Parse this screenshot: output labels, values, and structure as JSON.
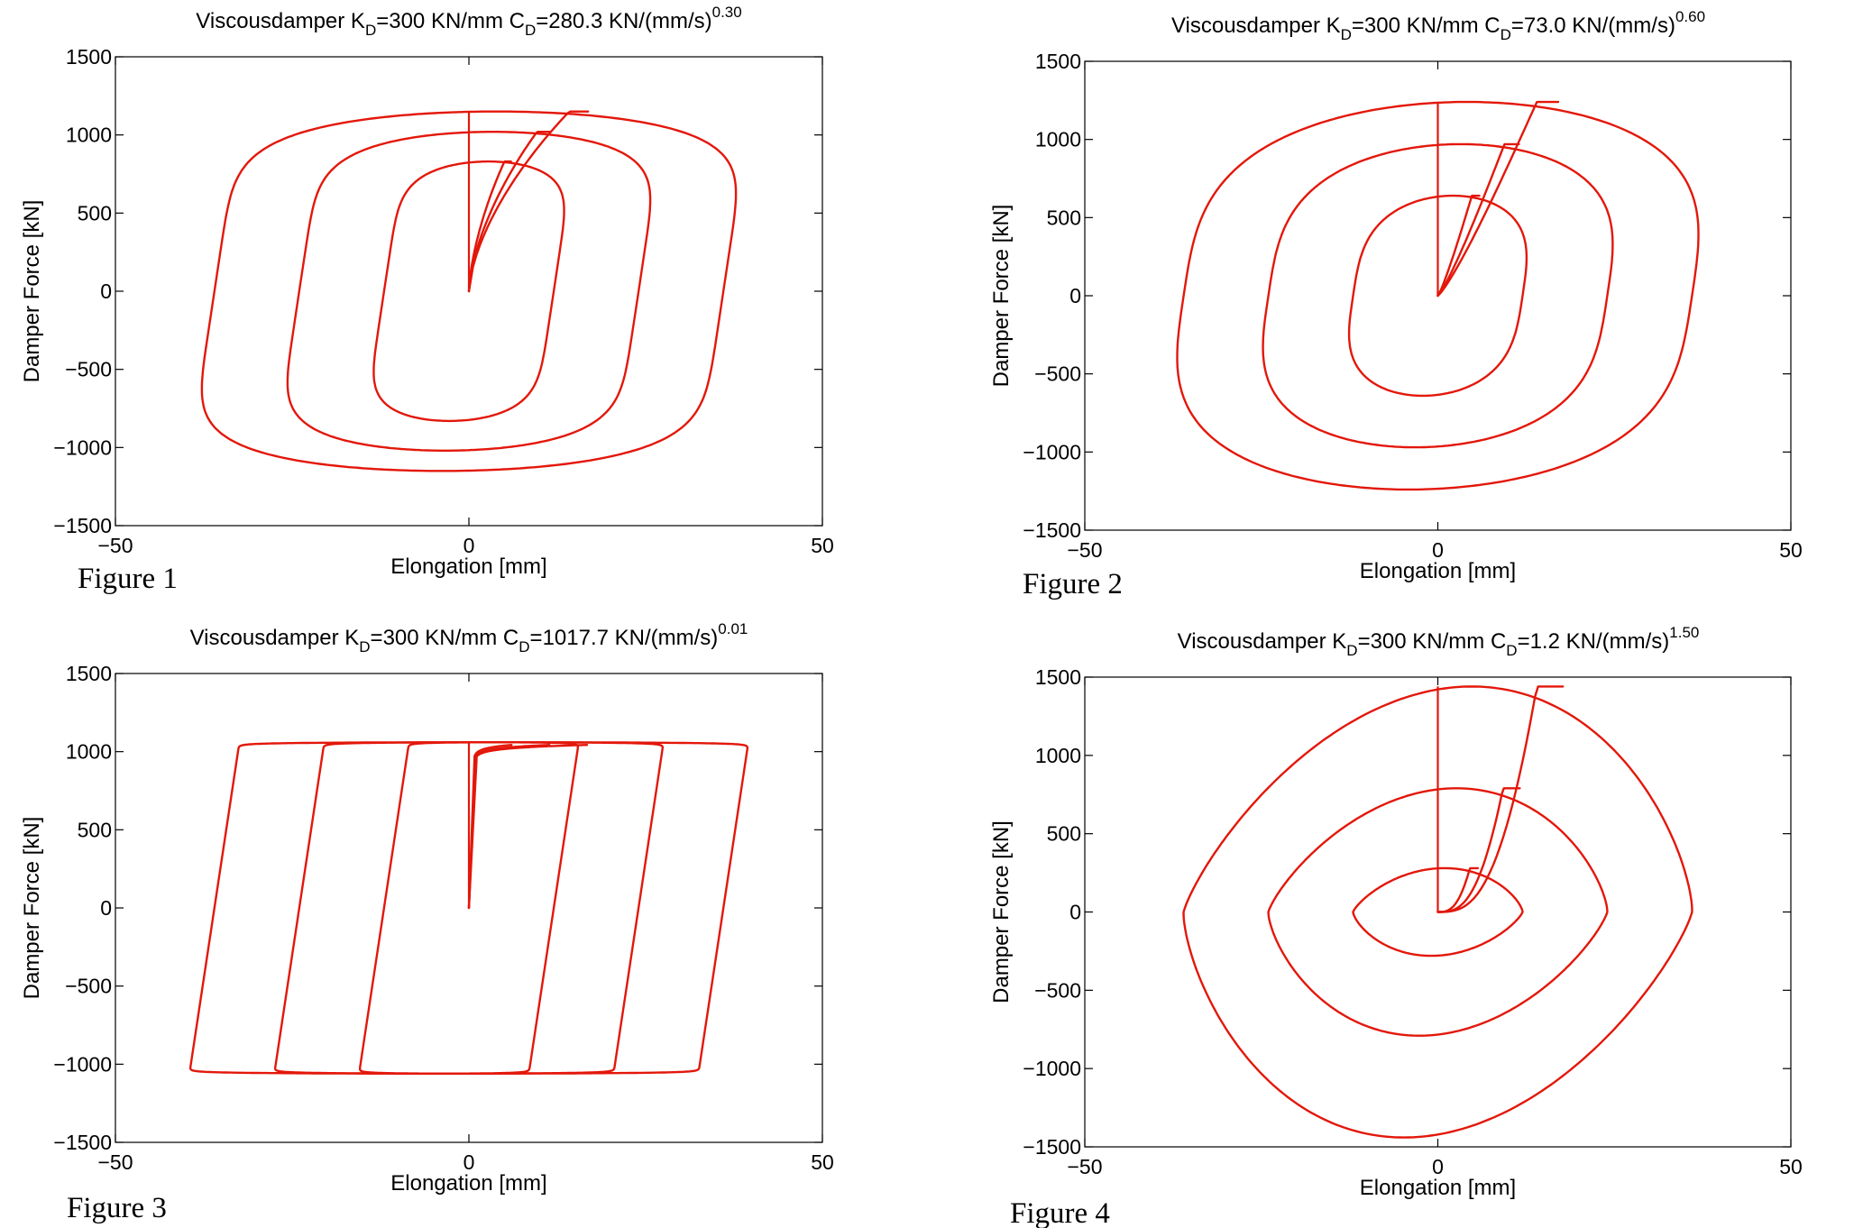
{
  "colors": {
    "curve": "#e3170a",
    "axes": "#000000"
  },
  "chart_data": [
    {
      "type": "line",
      "caption": "Figure 1",
      "title": "Viscousdamper K_D=300 KN/mm C_D=280.3 KN/(mm/s)^0.30",
      "title_parts": {
        "prefix": "Viscousdamper K",
        "sub1": "D",
        "mid": "=300 KN/mm C",
        "sub2": "D",
        "rest": "=280.3 KN/(mm/s)",
        "sup": "0.30"
      },
      "xlabel": "Elongation [mm]",
      "ylabel": "Damper Force [kN]",
      "xlim": [
        -50,
        50
      ],
      "ylim": [
        -1500,
        1500
      ],
      "xticks": [
        -50,
        0,
        50
      ],
      "yticks": [
        -1500,
        -1000,
        -500,
        0,
        500,
        1000,
        1500
      ],
      "grid": false,
      "alpha": 0.3,
      "series": [
        {
          "amplitude_mm": 12,
          "peak_force_kN": 830
        },
        {
          "amplitude_mm": 24,
          "peak_force_kN": 1020
        },
        {
          "amplitude_mm": 36,
          "peak_force_kN": 1150
        }
      ]
    },
    {
      "type": "line",
      "caption": "Figure 2",
      "title": "Viscousdamper K_D=300 KN/mm C_D=73.0 KN/(mm/s)^0.60",
      "title_parts": {
        "prefix": "Viscousdamper K",
        "sub1": "D",
        "mid": "=300 KN/mm C",
        "sub2": "D",
        "rest": "=73.0 KN/(mm/s)",
        "sup": "0.60"
      },
      "xlabel": "Elongation [mm]",
      "ylabel": "Damper Force [kN]",
      "xlim": [
        -50,
        50
      ],
      "ylim": [
        -1500,
        1500
      ],
      "xticks": [
        -50,
        0,
        50
      ],
      "yticks": [
        -1500,
        -1000,
        -500,
        0,
        500,
        1000,
        1500
      ],
      "grid": false,
      "alpha": 0.6,
      "series": [
        {
          "amplitude_mm": 12,
          "peak_force_kN": 640
        },
        {
          "amplitude_mm": 24,
          "peak_force_kN": 970
        },
        {
          "amplitude_mm": 36,
          "peak_force_kN": 1240
        }
      ]
    },
    {
      "type": "line",
      "caption": "Figure 3",
      "title": "Viscousdamper K_D=300 KN/mm C_D=1017.7 KN/(mm/s)^0.01",
      "title_parts": {
        "prefix": "Viscousdamper K",
        "sub1": "D",
        "mid": "=300 KN/mm C",
        "sub2": "D",
        "rest": "=1017.7 KN/(mm/s)",
        "sup": "0.01"
      },
      "xlabel": "Elongation [mm]",
      "ylabel": "Damper Force [kN]",
      "xlim": [
        -50,
        50
      ],
      "ylim": [
        -1500,
        1500
      ],
      "xticks": [
        -50,
        0,
        50
      ],
      "yticks": [
        -1500,
        -1000,
        -500,
        0,
        500,
        1000,
        1500
      ],
      "grid": false,
      "alpha": 0.01,
      "series": [
        {
          "amplitude_mm": 12,
          "peak_force_kN": 1060
        },
        {
          "amplitude_mm": 24,
          "peak_force_kN": 1060
        },
        {
          "amplitude_mm": 36,
          "peak_force_kN": 1060
        }
      ]
    },
    {
      "type": "line",
      "caption": "Figure 4",
      "title": "Viscousdamper K_D=300 KN/mm C_D=1.2 KN/(mm/s)^1.50",
      "title_parts": {
        "prefix": "Viscousdamper K",
        "sub1": "D",
        "mid": "=300 KN/mm C",
        "sub2": "D",
        "rest": "=1.2 KN/(mm/s)",
        "sup": "1.50"
      },
      "xlabel": "Elongation [mm]",
      "ylabel": "Damper Force [kN]",
      "xlim": [
        -50,
        50
      ],
      "ylim": [
        -1500,
        1500
      ],
      "xticks": [
        -50,
        0,
        50
      ],
      "yticks": [
        -1500,
        -1000,
        -500,
        0,
        500,
        1000,
        1500
      ],
      "grid": false,
      "alpha": 1.5,
      "series": [
        {
          "amplitude_mm": 12,
          "peak_force_kN": 280
        },
        {
          "amplitude_mm": 24,
          "peak_force_kN": 790
        },
        {
          "amplitude_mm": 36,
          "peak_force_kN": 1440
        }
      ]
    }
  ]
}
